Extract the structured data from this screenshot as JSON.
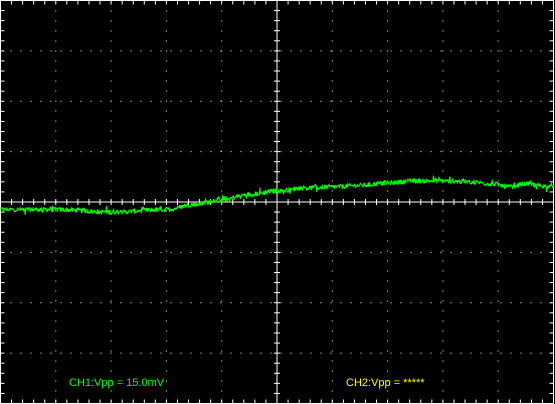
{
  "channels": {
    "ch1": {
      "label": "CH1:Vpp = 15.0mV",
      "color": "#00ff00"
    },
    "ch2": {
      "label": "CH2:Vpp = *****",
      "color": "#ffff00"
    }
  },
  "grid": {
    "divisions_x": 10,
    "divisions_y": 8,
    "line_color": "#ffffff",
    "background": "#000000"
  },
  "chart_data": {
    "type": "line",
    "title": "",
    "xlabel": "",
    "ylabel": "",
    "xlim": [
      0,
      10
    ],
    "ylim": [
      -4,
      4
    ],
    "grid": true,
    "series": [
      {
        "name": "CH1",
        "color": "#00ff00",
        "x": [
          0,
          1,
          2,
          3,
          3.5,
          4,
          4.5,
          5,
          5.5,
          6,
          6.5,
          7,
          7.5,
          8,
          8.5,
          8.9,
          9.2,
          9.5,
          10
        ],
        "y": [
          -0.15,
          -0.15,
          -0.2,
          -0.15,
          -0.05,
          0.05,
          0.15,
          0.22,
          0.28,
          0.3,
          0.33,
          0.38,
          0.42,
          0.42,
          0.4,
          0.36,
          0.3,
          0.36,
          0.3
        ]
      }
    ]
  }
}
